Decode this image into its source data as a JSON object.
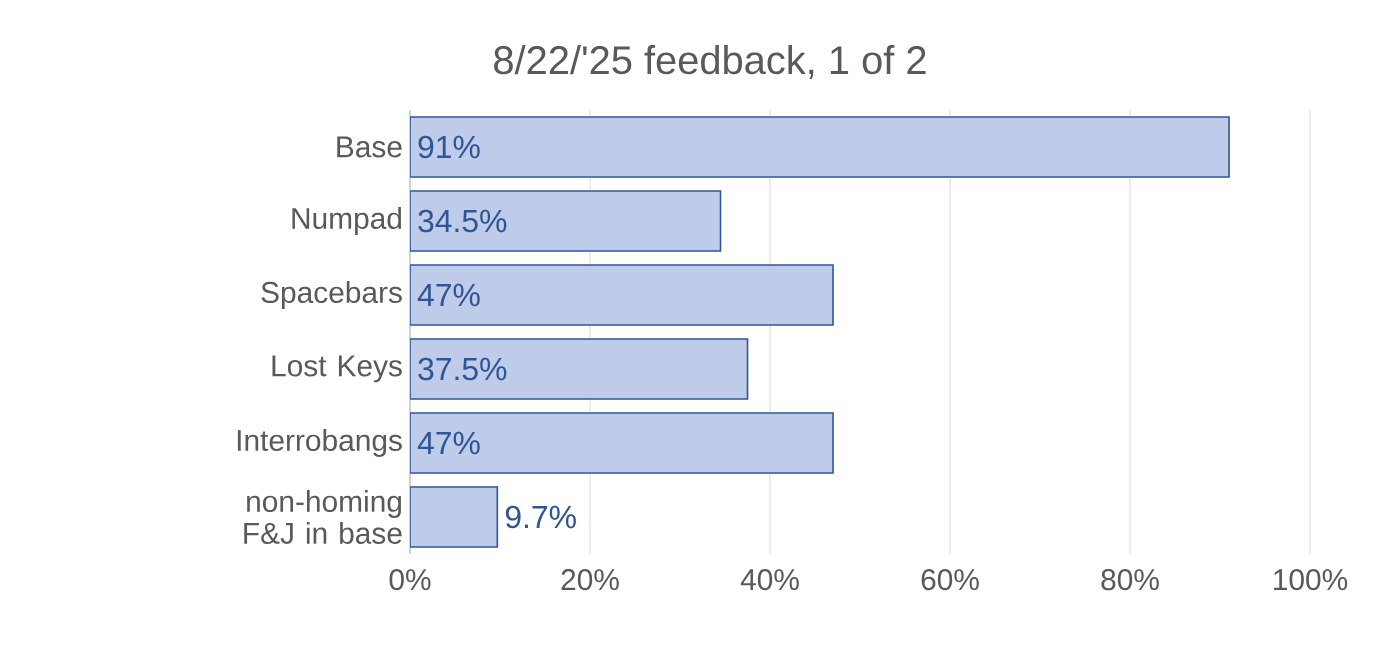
{
  "chart_data": {
    "type": "bar",
    "orientation": "horizontal",
    "title": "8/22/'25 feedback, 1 of 2",
    "categories": [
      "Base",
      "Numpad",
      "Spacebars",
      "Lost Keys",
      "Interrobangs",
      "non-homing F&J in base"
    ],
    "values": [
      91,
      34.5,
      47,
      37.5,
      47,
      9.7
    ],
    "value_labels": [
      "91%",
      "34.5%",
      "47%",
      "37.5%",
      "47%",
      "9.7%"
    ],
    "color": "#bfcce9",
    "xlim": [
      0,
      100
    ],
    "xticks": [
      {
        "value": 0,
        "label": "0%"
      },
      {
        "value": 20,
        "label": "20%"
      },
      {
        "value": 40,
        "label": "40%"
      },
      {
        "value": 60,
        "label": "60%"
      },
      {
        "value": 80,
        "label": "80%"
      },
      {
        "value": 100,
        "label": "100%"
      }
    ],
    "grid": "x"
  }
}
